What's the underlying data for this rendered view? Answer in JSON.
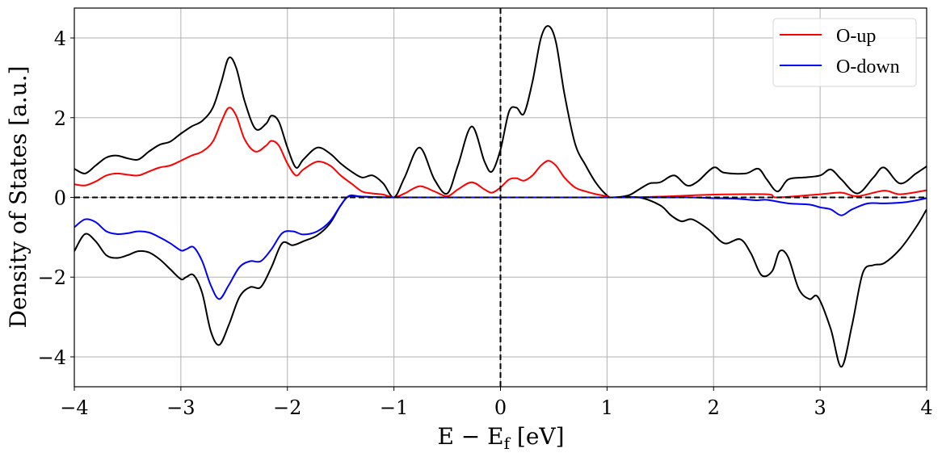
{
  "chart_data": {
    "type": "line",
    "title": "",
    "xlabel": "E − E_f [eV]",
    "xlabel_main": "E − E",
    "xlabel_sub": "f",
    "xlabel_unit": " [eV]",
    "ylabel": "Density of States [a.u.]",
    "xlim": [
      -4,
      4
    ],
    "ylim": [
      -4.75,
      4.75
    ],
    "xticks": [
      -4,
      -3,
      -2,
      -1,
      0,
      1,
      2,
      3,
      4
    ],
    "yticks": [
      -4,
      -2,
      0,
      2,
      4
    ],
    "xtick_labels": [
      "−4",
      "−3",
      "−2",
      "−1",
      "0",
      "1",
      "2",
      "3",
      "4"
    ],
    "ytick_labels": [
      "−4",
      "−2",
      "0",
      "2",
      "4"
    ],
    "grid": true,
    "legend_position": "upper right",
    "reference_lines": [
      {
        "type": "horizontal",
        "value": 0,
        "style": "dashed",
        "color": "#000000"
      },
      {
        "type": "vertical",
        "value": 0,
        "style": "dashed",
        "color": "#000000"
      }
    ],
    "series": [
      {
        "name": "total-up",
        "label": "",
        "color": "#000000",
        "x": [
          -4,
          -3.9,
          -3.8,
          -3.7,
          -3.6,
          -3.5,
          -3.4,
          -3.3,
          -3.2,
          -3.1,
          -3.0,
          -2.9,
          -2.8,
          -2.7,
          -2.62,
          -2.55,
          -2.48,
          -2.4,
          -2.3,
          -2.2,
          -2.15,
          -2.08,
          -2.0,
          -1.92,
          -1.85,
          -1.72,
          -1.6,
          -1.5,
          -1.4,
          -1.3,
          -1.2,
          -1.1,
          -1.0,
          -0.9,
          -0.76,
          -0.62,
          -0.5,
          -0.4,
          -0.27,
          -0.15,
          -0.08,
          0.0,
          0.08,
          0.15,
          0.22,
          0.3,
          0.38,
          0.45,
          0.52,
          0.6,
          0.7,
          0.8,
          0.9,
          1.0,
          1.05,
          1.2,
          1.3,
          1.4,
          1.5,
          1.63,
          1.75,
          1.85,
          2.0,
          2.1,
          2.3,
          2.42,
          2.5,
          2.6,
          2.7,
          2.85,
          3.0,
          3.1,
          3.2,
          3.35,
          3.5,
          3.6,
          3.75,
          3.9,
          4.0
        ],
        "values": [
          0.72,
          0.6,
          0.8,
          1.0,
          1.05,
          0.98,
          0.95,
          1.15,
          1.32,
          1.4,
          1.6,
          1.78,
          1.92,
          2.25,
          2.9,
          3.5,
          3.25,
          2.4,
          1.72,
          1.85,
          2.05,
          1.9,
          1.25,
          0.75,
          0.95,
          1.25,
          1.1,
          0.85,
          0.65,
          0.5,
          0.55,
          0.35,
          0.0,
          0.5,
          1.25,
          0.45,
          0.1,
          0.8,
          1.78,
          0.9,
          0.65,
          1.2,
          2.15,
          2.25,
          2.1,
          2.9,
          4.0,
          4.3,
          3.9,
          2.6,
          1.35,
          0.8,
          0.35,
          0.05,
          0.0,
          0.05,
          0.2,
          0.35,
          0.38,
          0.55,
          0.3,
          0.4,
          0.75,
          0.62,
          0.6,
          0.72,
          0.45,
          0.15,
          0.45,
          0.5,
          0.55,
          0.7,
          0.45,
          0.1,
          0.5,
          0.75,
          0.35,
          0.6,
          0.78
        ]
      },
      {
        "name": "O-up",
        "label": "O-up",
        "color": "#ff0000",
        "x": [
          -4,
          -3.9,
          -3.8,
          -3.7,
          -3.6,
          -3.5,
          -3.4,
          -3.3,
          -3.2,
          -3.1,
          -3.0,
          -2.9,
          -2.8,
          -2.7,
          -2.62,
          -2.55,
          -2.48,
          -2.4,
          -2.3,
          -2.2,
          -2.15,
          -2.08,
          -2.0,
          -1.92,
          -1.85,
          -1.72,
          -1.6,
          -1.5,
          -1.4,
          -1.3,
          -1.2,
          -1.1,
          -1.0,
          -0.9,
          -0.76,
          -0.62,
          -0.5,
          -0.4,
          -0.27,
          -0.15,
          -0.08,
          0.0,
          0.08,
          0.15,
          0.22,
          0.3,
          0.38,
          0.45,
          0.52,
          0.6,
          0.7,
          0.8,
          0.9,
          1.0,
          1.05,
          1.5,
          2.0,
          2.5,
          2.6,
          3.0,
          3.2,
          3.35,
          3.6,
          3.75,
          4.0
        ],
        "values": [
          0.33,
          0.3,
          0.4,
          0.55,
          0.6,
          0.57,
          0.55,
          0.65,
          0.75,
          0.8,
          0.92,
          1.05,
          1.15,
          1.4,
          1.9,
          2.25,
          2.05,
          1.45,
          1.15,
          1.3,
          1.42,
          1.3,
          0.85,
          0.55,
          0.7,
          0.9,
          0.8,
          0.55,
          0.35,
          0.15,
          0.1,
          0.07,
          0.0,
          0.1,
          0.28,
          0.15,
          0.03,
          0.2,
          0.38,
          0.2,
          0.12,
          0.25,
          0.45,
          0.48,
          0.42,
          0.55,
          0.8,
          0.92,
          0.8,
          0.5,
          0.25,
          0.15,
          0.08,
          0.03,
          0.0,
          0.02,
          0.07,
          0.08,
          0.0,
          0.08,
          0.12,
          0.03,
          0.17,
          0.08,
          0.18
        ]
      },
      {
        "name": "O-down",
        "label": "O-down",
        "color": "#0000ff",
        "x": [
          -4,
          -3.9,
          -3.8,
          -3.7,
          -3.6,
          -3.5,
          -3.4,
          -3.3,
          -3.2,
          -3.1,
          -3.0,
          -2.95,
          -2.88,
          -2.8,
          -2.72,
          -2.64,
          -2.55,
          -2.45,
          -2.35,
          -2.25,
          -2.15,
          -2.05,
          -1.95,
          -1.85,
          -1.72,
          -1.6,
          -1.5,
          -1.42,
          -1.3,
          -1.0,
          0.0,
          1.0,
          1.5,
          1.8,
          2.0,
          2.2,
          2.4,
          2.5,
          2.7,
          2.9,
          3.0,
          3.1,
          3.2,
          3.3,
          3.45,
          3.6,
          3.8,
          4.0
        ],
        "values": [
          -0.75,
          -0.55,
          -0.62,
          -0.85,
          -0.92,
          -0.9,
          -0.85,
          -0.88,
          -1.0,
          -1.15,
          -1.33,
          -1.3,
          -1.25,
          -1.6,
          -2.2,
          -2.55,
          -2.2,
          -1.75,
          -1.6,
          -1.6,
          -1.3,
          -0.9,
          -0.85,
          -0.93,
          -0.85,
          -0.6,
          -0.2,
          0.04,
          0.02,
          0.0,
          0.0,
          0.0,
          0.0,
          0.0,
          -0.02,
          -0.03,
          -0.07,
          -0.06,
          -0.15,
          -0.18,
          -0.25,
          -0.3,
          -0.45,
          -0.3,
          -0.15,
          -0.15,
          -0.12,
          -0.02
        ]
      },
      {
        "name": "total-down",
        "label": "",
        "color": "#000000",
        "x": [
          -4,
          -3.9,
          -3.8,
          -3.7,
          -3.6,
          -3.5,
          -3.4,
          -3.3,
          -3.2,
          -3.1,
          -3.0,
          -2.95,
          -2.88,
          -2.8,
          -2.72,
          -2.64,
          -2.55,
          -2.45,
          -2.35,
          -2.25,
          -2.15,
          -2.05,
          -1.95,
          -1.85,
          -1.72,
          -1.6,
          -1.5,
          -1.42,
          -1.3,
          -1.0,
          0.0,
          1.0,
          1.3,
          1.5,
          1.6,
          1.7,
          1.8,
          1.95,
          2.1,
          2.25,
          2.35,
          2.45,
          2.55,
          2.62,
          2.7,
          2.8,
          2.9,
          2.98,
          3.1,
          3.2,
          3.3,
          3.4,
          3.5,
          3.6,
          3.75,
          3.9,
          4.0
        ],
        "values": [
          -1.35,
          -0.92,
          -1.1,
          -1.45,
          -1.52,
          -1.45,
          -1.35,
          -1.38,
          -1.55,
          -1.8,
          -2.05,
          -2.0,
          -1.95,
          -2.4,
          -3.35,
          -3.7,
          -3.2,
          -2.5,
          -2.25,
          -2.25,
          -1.75,
          -1.15,
          -1.2,
          -1.1,
          -0.95,
          -0.65,
          -0.2,
          0.03,
          0.02,
          0.0,
          0.0,
          0.0,
          0.0,
          -0.2,
          -0.45,
          -0.6,
          -0.55,
          -0.8,
          -1.15,
          -1.05,
          -1.4,
          -1.95,
          -1.85,
          -1.35,
          -1.5,
          -2.3,
          -2.55,
          -2.5,
          -3.3,
          -4.25,
          -3.2,
          -1.9,
          -1.7,
          -1.65,
          -1.3,
          -0.75,
          -0.3
        ]
      }
    ]
  },
  "legend": {
    "items": [
      {
        "label": "O-up",
        "color": "#ff0000"
      },
      {
        "label": "O-down",
        "color": "#0000ff"
      }
    ]
  },
  "colors": {
    "grid": "#b0b0b0",
    "axes": "#000000",
    "background": "#ffffff"
  }
}
